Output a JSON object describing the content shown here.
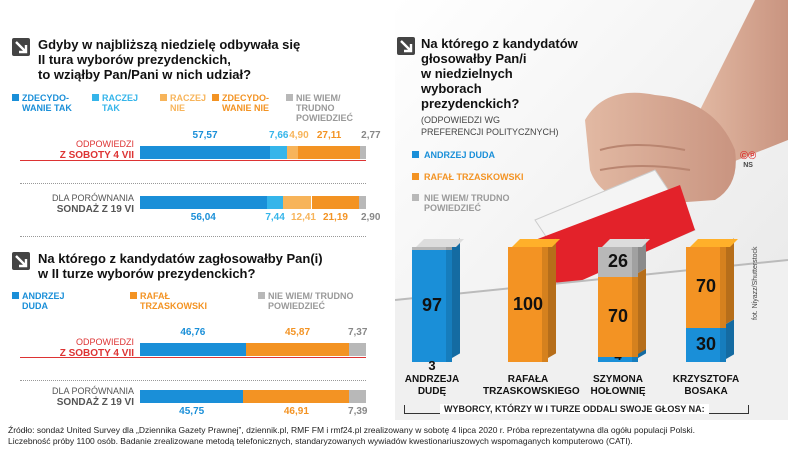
{
  "colors": {
    "dark_blue": "#1a8fd8",
    "light_blue": "#35b5ea",
    "light_orange": "#f7b45a",
    "dark_orange": "#f39323",
    "gray": "#b8b8b8",
    "red": "#e3222a"
  },
  "q1": {
    "title_lines": [
      "Gdyby w najbliższą niedzielę odbywała się",
      "II tura wyborów prezydenckich,",
      "to wziąłby Pan/Pani w nich udział?"
    ],
    "legend": [
      {
        "lines": [
          "ZDECYDO-",
          "WANIE TAK"
        ],
        "color": "#1a8fd8"
      },
      {
        "lines": [
          "RACZEJ",
          "TAK"
        ],
        "color": "#35b5ea"
      },
      {
        "lines": [
          "RACZEJ",
          "NIE"
        ],
        "color": "#f7b45a"
      },
      {
        "lines": [
          "ZDECYDO-",
          "WANIE NIE"
        ],
        "color": "#f39323"
      },
      {
        "lines": [
          "NIE WIEM/",
          "TRUDNO",
          "POWIEDZIEĆ"
        ],
        "color": "#b8b8b8"
      }
    ],
    "row1_label": [
      "ODPOWIEDZI",
      "Z SOBOTY 4 VII"
    ],
    "row2_label": [
      "DLA PORÓWNANIA",
      "SONDAŻ Z 19 VI"
    ]
  },
  "q2": {
    "title_lines": [
      "Na którego z kandydatów zagłosowałby Pan(i)",
      "w II turze wyborów prezydenckich?"
    ],
    "legend": [
      {
        "lines": [
          "ANDRZEJ",
          "DUDA"
        ],
        "color": "#1a8fd8"
      },
      {
        "lines": [
          "RAFAŁ",
          "TRZASKOWSKI"
        ],
        "color": "#f39323"
      },
      {
        "lines": [
          "NIE WIEM/ TRUDNO",
          "POWIEDZIEĆ"
        ],
        "color": "#b8b8b8"
      }
    ],
    "row1_label": [
      "ODPOWIEDZI",
      "Z SOBOTY 4 VII"
    ],
    "row2_label": [
      "DLA PORÓWNANIA",
      "SONDAŻ Z 19 VI"
    ]
  },
  "q3": {
    "title_lines": [
      "Na którego z kandydatów",
      "głosowałby Pan/i",
      "w niedzielnych",
      "wyborach",
      "prezydenckich?"
    ],
    "subtitle_lines": [
      "(ODPOWIEDZI WG",
      "PREFERENCJI POLITYCZNYCH)"
    ],
    "legend": [
      {
        "lines": [
          "ANDRZEJ DUDA"
        ],
        "color": "#1a8fd8"
      },
      {
        "lines": [
          "RAFAŁ TRZASKOWSKI"
        ],
        "color": "#f39323"
      },
      {
        "lines": [
          "NIE WIEM/ TRUDNO",
          "POWIEDZIEĆ"
        ],
        "color": "#b8b8b8"
      }
    ],
    "footnote": "WYBORCY, KTÓRZY W I TURZE ODDALI SWOJE GŁOSY NA:",
    "photo_credit": "fot. Niyazz/Shutterstock",
    "logo_letters": "©℗",
    "logo_ns": "NS"
  },
  "chart_data": [
    {
      "type": "bar",
      "stacked": true,
      "orientation": "horizontal",
      "title": "Gdyby w najbliższą niedzielę odbywała się II tura wyborów prezydenckich, to wziąłby Pan/Pani w nich udział?",
      "categories": [
        "ODPOWIEDZI Z SOBOTY 4 VII",
        "DLA PORÓWNANIA SONDAŻ Z 19 VI"
      ],
      "series": [
        {
          "name": "ZDECYDOWANIE TAK",
          "values": [
            57.57,
            56.04
          ]
        },
        {
          "name": "RACZEJ TAK",
          "values": [
            7.66,
            7.44
          ]
        },
        {
          "name": "RACZEJ NIE",
          "values": [
            4.9,
            12.41
          ]
        },
        {
          "name": "ZDECYDOWANIE NIE",
          "values": [
            27.11,
            21.19
          ]
        },
        {
          "name": "NIE WIEM/ TRUDNO POWIEDZIEĆ",
          "values": [
            2.77,
            2.9
          ]
        }
      ],
      "value_labels": [
        [
          "57,57",
          "7,66",
          "4,90",
          "27,11",
          "2,77"
        ],
        [
          "56,04",
          "7,44",
          "12,41",
          "21,19",
          "2,90"
        ]
      ]
    },
    {
      "type": "bar",
      "stacked": true,
      "orientation": "horizontal",
      "title": "Na którego z kandydatów zagłosowałby Pan(i) w II turze wyborów prezydenckich?",
      "categories": [
        "ODPOWIEDZI Z SOBOTY 4 VII",
        "DLA PORÓWNANIA SONDAŻ Z 19 VI"
      ],
      "series": [
        {
          "name": "ANDRZEJ DUDA",
          "values": [
            46.76,
            45.75
          ]
        },
        {
          "name": "RAFAŁ TRZASKOWSKI",
          "values": [
            45.87,
            46.91
          ]
        },
        {
          "name": "NIE WIEM/ TRUDNO POWIEDZIEĆ",
          "values": [
            7.37,
            7.39
          ]
        }
      ],
      "value_labels": [
        [
          "46,76",
          "45,87",
          "7,37"
        ],
        [
          "45,75",
          "46,91",
          "7,39"
        ]
      ]
    },
    {
      "type": "bar",
      "stacked": true,
      "orientation": "vertical",
      "title": "Na którego z kandydatów głosowałby Pan/i w niedzielnych wyborach prezydenckich? (ODPOWIEDZI WG PREFERENCJI POLITYCZNYCH)",
      "categories": [
        [
          "ANDRZEJA",
          "DUDĘ"
        ],
        [
          "RAFAŁA",
          "TRZASKOWSKIEGO"
        ],
        [
          "SZYMONA",
          "HOŁOWNIĘ"
        ],
        [
          "KRZYSZTOFA",
          "BOSAKA"
        ]
      ],
      "series": [
        {
          "name": "ANDRZEJ DUDA",
          "values": [
            97,
            0,
            4,
            30
          ]
        },
        {
          "name": "RAFAŁ TRZASKOWSKI",
          "values": [
            0,
            100,
            70,
            70
          ]
        },
        {
          "name": "NIE WIEM/ TRUDNO POWIEDZIEĆ",
          "values": [
            3,
            0,
            26,
            0
          ]
        }
      ]
    }
  ],
  "source_lines": [
    "Źródło: sondaż United Survey dla „Dziennika Gazety Prawnej”, dziennik.pl, RMF FM i rmf24.pl zrealizowany w sobotę 4 lipca 2020 r. Próba reprezentatywna dla ogółu populacji Polski.",
    "Liczebność próby 1100 osób. Badanie zrealizowane metodą telefonicznych, standaryzowanych wywiadów kwestionariuszowych wspomaganych komputerowo (CATI)."
  ]
}
